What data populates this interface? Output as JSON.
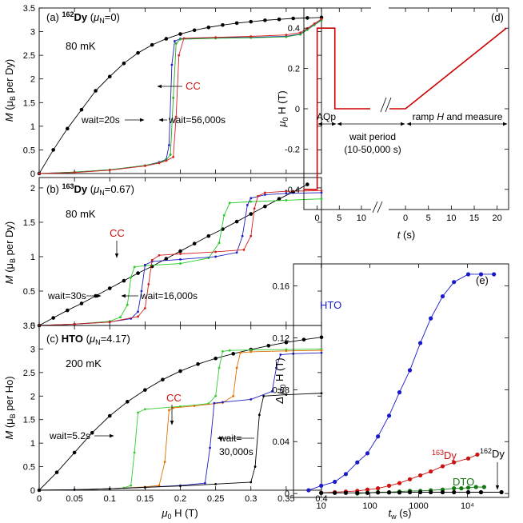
{
  "chart_data": [
    {
      "type": "line",
      "label": [
        "(a) ",
        "162",
        "Dy",
        " (",
        "μ",
        "N",
        "=0)"
      ],
      "temperature": "80 mK",
      "ylabel": [
        "M",
        " (μ",
        "B",
        " per Dy)"
      ],
      "annotations": {
        "cc": "CC",
        "wait_short": "wait=20s",
        "wait_long": "wait=56,000s"
      },
      "xlim": [
        0,
        0.4
      ],
      "ylim": [
        0,
        3.5
      ],
      "yticks": [
        0,
        0.5,
        1,
        1.5,
        2,
        2.5,
        3,
        3.5
      ],
      "series": [
        {
          "color": "#000000",
          "x": [
            0,
            0.02,
            0.04,
            0.06,
            0.08,
            0.1,
            0.12,
            0.14,
            0.16,
            0.18,
            0.2,
            0.22,
            0.24,
            0.26,
            0.28,
            0.3,
            0.32,
            0.34,
            0.36,
            0.38,
            0.4
          ],
          "values": [
            0,
            0.5,
            0.95,
            1.35,
            1.75,
            2.05,
            2.33,
            2.55,
            2.72,
            2.85,
            2.95,
            3.03,
            3.09,
            3.14,
            3.18,
            3.21,
            3.24,
            3.26,
            3.28,
            3.29,
            3.3
          ]
        },
        {
          "color": "#1f1fbf",
          "x": [
            0,
            0.05,
            0.1,
            0.15,
            0.17,
            0.18,
            0.184,
            0.188,
            0.192,
            0.2,
            0.25,
            0.3,
            0.35,
            0.37,
            0.38,
            0.39,
            0.4
          ],
          "values": [
            0,
            0.03,
            0.08,
            0.17,
            0.24,
            0.3,
            0.6,
            2.3,
            2.8,
            2.85,
            2.87,
            2.88,
            2.9,
            2.95,
            3.05,
            3.15,
            3.25
          ]
        },
        {
          "color": "#22aa22",
          "x": [
            0,
            0.05,
            0.1,
            0.15,
            0.17,
            0.18,
            0.186,
            0.19,
            0.194,
            0.2,
            0.25,
            0.3,
            0.35,
            0.37,
            0.38,
            0.39,
            0.4
          ],
          "values": [
            0,
            0.03,
            0.08,
            0.17,
            0.23,
            0.29,
            0.4,
            1.6,
            2.75,
            2.84,
            2.86,
            2.87,
            2.89,
            2.94,
            3.04,
            3.14,
            3.24
          ]
        },
        {
          "color": "#d42020",
          "x": [
            0,
            0.05,
            0.1,
            0.15,
            0.17,
            0.18,
            0.19,
            0.194,
            0.198,
            0.205,
            0.25,
            0.3,
            0.35,
            0.37,
            0.38,
            0.39,
            0.4
          ],
          "values": [
            0,
            0.02,
            0.07,
            0.16,
            0.22,
            0.27,
            0.35,
            1.2,
            2.5,
            2.86,
            2.88,
            2.9,
            2.93,
            2.98,
            3.07,
            3.17,
            3.27
          ]
        }
      ]
    },
    {
      "type": "line",
      "label": [
        "(b) ",
        "163",
        "Dy",
        " (",
        "μ",
        "N",
        "=0.67)"
      ],
      "temperature": "80 mK",
      "ylabel": [
        "M",
        " (μ",
        "B",
        " per Dy)"
      ],
      "annotations": {
        "cc": "CC",
        "wait_short": "wait=30s",
        "wait_long": "wait=16,000s"
      },
      "xlim": [
        0,
        0.4
      ],
      "ylim": [
        0,
        2.15
      ],
      "yticks": [
        0,
        0.5,
        1,
        1.5,
        2
      ],
      "series": [
        {
          "color": "#000000",
          "x": [
            0,
            0.02,
            0.04,
            0.06,
            0.08,
            0.1,
            0.12,
            0.14,
            0.16,
            0.18,
            0.2,
            0.22,
            0.24,
            0.26,
            0.28,
            0.3,
            0.32,
            0.34,
            0.36,
            0.38
          ],
          "values": [
            0,
            0.11,
            0.22,
            0.32,
            0.43,
            0.54,
            0.65,
            0.76,
            0.86,
            0.97,
            1.08,
            1.19,
            1.3,
            1.4,
            1.51,
            1.62,
            1.73,
            1.84,
            1.94,
            2.05
          ]
        },
        {
          "color": "#22cc22",
          "x": [
            0,
            0.05,
            0.1,
            0.115,
            0.125,
            0.13,
            0.135,
            0.15,
            0.2,
            0.24,
            0.255,
            0.262,
            0.27,
            0.3,
            0.35,
            0.4
          ],
          "values": [
            0,
            0.02,
            0.06,
            0.12,
            0.3,
            0.7,
            0.85,
            0.87,
            0.9,
            0.98,
            1.2,
            1.6,
            1.78,
            1.8,
            1.82,
            1.84
          ]
        },
        {
          "color": "#1f1fbf",
          "x": [
            0,
            0.05,
            0.1,
            0.13,
            0.14,
            0.145,
            0.15,
            0.16,
            0.2,
            0.25,
            0.28,
            0.288,
            0.295,
            0.3,
            0.32,
            0.35,
            0.4
          ],
          "values": [
            0,
            0.02,
            0.05,
            0.1,
            0.2,
            0.5,
            0.88,
            0.93,
            0.96,
            1.0,
            1.06,
            1.3,
            1.75,
            1.85,
            1.9,
            1.92,
            1.93
          ]
        },
        {
          "color": "#d42020",
          "x": [
            0,
            0.05,
            0.1,
            0.14,
            0.15,
            0.155,
            0.16,
            0.17,
            0.2,
            0.25,
            0.29,
            0.3,
            0.305,
            0.31,
            0.32,
            0.35,
            0.4
          ],
          "values": [
            0,
            0.02,
            0.05,
            0.13,
            0.25,
            0.6,
            0.95,
            1.02,
            1.04,
            1.07,
            1.1,
            1.3,
            1.7,
            1.88,
            1.93,
            1.95,
            1.96
          ]
        }
      ]
    },
    {
      "type": "line",
      "label": [
        "(c) ",
        "HTO",
        " (",
        "μ",
        "N",
        "=4.17)"
      ],
      "temperature": "200 mK",
      "ylabel": [
        "M",
        " (μ",
        "B",
        " per Ho)"
      ],
      "xlabel": [
        "μ",
        "0",
        " H (T)"
      ],
      "annotations": {
        "cc": "CC",
        "wait_short": "wait=5.2s",
        "wait_long": [
          "wait=",
          "30,000s"
        ]
      },
      "xlim": [
        0,
        0.4
      ],
      "xticks": [
        0,
        0.05,
        0.1,
        0.15,
        0.2,
        0.25,
        0.3,
        0.35,
        0.4
      ],
      "ylim": [
        0,
        3.5
      ],
      "yticks": [
        0,
        0.5,
        1,
        1.5,
        2,
        2.5,
        3,
        3.5
      ],
      "series": [
        {
          "color": "#000000",
          "x": [
            0,
            0.025,
            0.05,
            0.075,
            0.1,
            0.125,
            0.15,
            0.175,
            0.2,
            0.225,
            0.25,
            0.275,
            0.3,
            0.325,
            0.35,
            0.375,
            0.4
          ],
          "values": [
            0,
            0.38,
            0.8,
            1.22,
            1.58,
            1.88,
            2.13,
            2.35,
            2.53,
            2.68,
            2.8,
            2.9,
            2.99,
            3.07,
            3.14,
            3.2,
            3.25
          ]
        },
        {
          "color": "#33cc33",
          "x": [
            0,
            0.05,
            0.1,
            0.12,
            0.13,
            0.135,
            0.14,
            0.15,
            0.2,
            0.24,
            0.25,
            0.255,
            0.26,
            0.27,
            0.3,
            0.35,
            0.4
          ],
          "values": [
            0,
            0.01,
            0.03,
            0.05,
            0.1,
            0.8,
            1.65,
            1.72,
            1.78,
            1.84,
            2.0,
            2.6,
            2.95,
            2.97,
            2.98,
            2.99,
            3.0
          ]
        },
        {
          "color": "#e07000",
          "x": [
            0,
            0.05,
            0.1,
            0.15,
            0.17,
            0.178,
            0.184,
            0.19,
            0.22,
            0.26,
            0.275,
            0.28,
            0.285,
            0.3,
            0.35,
            0.4
          ],
          "values": [
            0,
            0.01,
            0.03,
            0.07,
            0.1,
            0.6,
            1.7,
            1.75,
            1.79,
            1.86,
            2.0,
            2.6,
            2.92,
            2.94,
            2.96,
            2.97
          ]
        },
        {
          "color": "#1f1fbf",
          "x": [
            0,
            0.05,
            0.1,
            0.15,
            0.2,
            0.235,
            0.242,
            0.248,
            0.26,
            0.3,
            0.33,
            0.336,
            0.342,
            0.36,
            0.4
          ],
          "values": [
            0,
            0.01,
            0.03,
            0.06,
            0.1,
            0.15,
            0.9,
            1.85,
            1.87,
            1.93,
            2.1,
            2.6,
            2.88,
            2.9,
            2.92
          ]
        },
        {
          "color": "#000000",
          "x": [
            0,
            0.05,
            0.1,
            0.15,
            0.2,
            0.25,
            0.3,
            0.306,
            0.312,
            0.318,
            0.35,
            0.4
          ],
          "values": [
            0,
            0.01,
            0.03,
            0.06,
            0.09,
            0.13,
            0.17,
            0.5,
            1.6,
            2.0,
            2.03,
            2.06
          ]
        }
      ]
    },
    {
      "type": "line",
      "label": "(d)",
      "markers": false,
      "ylabel": [
        "μ",
        "0",
        " H (T)"
      ],
      "xlabel": [
        "t",
        " (s)"
      ],
      "annotations": {
        "aqp": "AQp",
        "wait": "wait period",
        "wait_range": "(10-50,000 s)",
        "ramp": [
          "ramp ",
          "H",
          " and measure"
        ]
      },
      "ylim": [
        -0.5,
        0.5
      ],
      "yticks": [
        -0.4,
        -0.2,
        0,
        0.2,
        0.4
      ],
      "segments": [
        {
          "xlim": [
            -3,
            12
          ],
          "xticks": [
            0,
            5,
            10
          ]
        },
        {
          "xlim": [
            -3.5,
            22.5
          ],
          "xticks": [
            0,
            5,
            10,
            15,
            20
          ]
        }
      ],
      "series": [
        {
          "segment": 0,
          "color": "#cc0000",
          "x": [
            -3,
            0,
            0,
            4,
            4,
            12
          ],
          "values": [
            -0.4,
            -0.4,
            0.4,
            0.4,
            0,
            0
          ]
        },
        {
          "segment": 1,
          "color": "#cc0000",
          "x": [
            -3.5,
            0,
            22
          ],
          "values": [
            0,
            0,
            0.4
          ]
        }
      ]
    },
    {
      "type": "line",
      "label": "(e)",
      "xscale": "log",
      "ylabel": [
        "Δ μ",
        "0",
        " H (T)"
      ],
      "xlabel": [
        "t",
        "w",
        " (s)"
      ],
      "xlim": [
        2.7,
        70000
      ],
      "xticks": [
        10,
        100,
        1000,
        {
          "value": 10000,
          "label": "10⁴"
        }
      ],
      "ylim": [
        -0.003,
        0.177
      ],
      "yticks": [
        0,
        0.04,
        0.08,
        0.12,
        0.16
      ],
      "series": [
        {
          "name": "HTO",
          "color": "#1a1acc",
          "x": [
            5.5,
            10,
            19,
            32,
            55,
            89,
            146,
            247,
            403,
            660,
            1080,
            1770,
            3100,
            5300,
            10400,
            19000,
            35000
          ],
          "values": [
            0.0025,
            0.006,
            0.009,
            0.015,
            0.024,
            0.031,
            0.044,
            0.06,
            0.078,
            0.095,
            0.116,
            0.135,
            0.152,
            0.163,
            0.169,
            0.169,
            0.169
          ]
        },
        {
          "name": "Dy",
          "isotope": "163",
          "color": "#cc1111",
          "x": [
            10,
            19,
            32,
            55,
            89,
            146,
            247,
            403,
            660,
            1080,
            1770,
            3100,
            5300,
            10400,
            16000
          ],
          "values": [
            0.0005,
            0.001,
            0.0015,
            0.002,
            0.003,
            0.004,
            0.006,
            0.008,
            0.011,
            0.014,
            0.017,
            0.021,
            0.024,
            0.027,
            0.03
          ]
        },
        {
          "name": "DTO",
          "color": "#117711",
          "x": [
            55,
            89,
            146,
            247,
            403,
            660,
            1080,
            1770,
            3100,
            5300,
            7500,
            10400,
            15000,
            22000
          ],
          "values": [
            0,
            0.0005,
            0.001,
            0.001,
            0.0015,
            0.002,
            0.002,
            0.0025,
            0.003,
            0.004,
            0.004,
            0.0045,
            0.005,
            0.005
          ]
        },
        {
          "name": "Dy",
          "isotope": "162",
          "color": "#000000",
          "x": [
            10,
            19,
            32,
            55,
            89,
            146,
            247,
            403,
            660,
            1080,
            1770,
            3100,
            5300,
            10400,
            19000,
            50000
          ],
          "values": [
            0.0005,
            0.0005,
            0.0005,
            0.0005,
            0.0005,
            0.0008,
            0.0008,
            0.0008,
            0.001,
            0.001,
            0.001,
            0.001,
            0.001,
            0.001,
            0.001,
            0.001
          ]
        }
      ]
    }
  ]
}
